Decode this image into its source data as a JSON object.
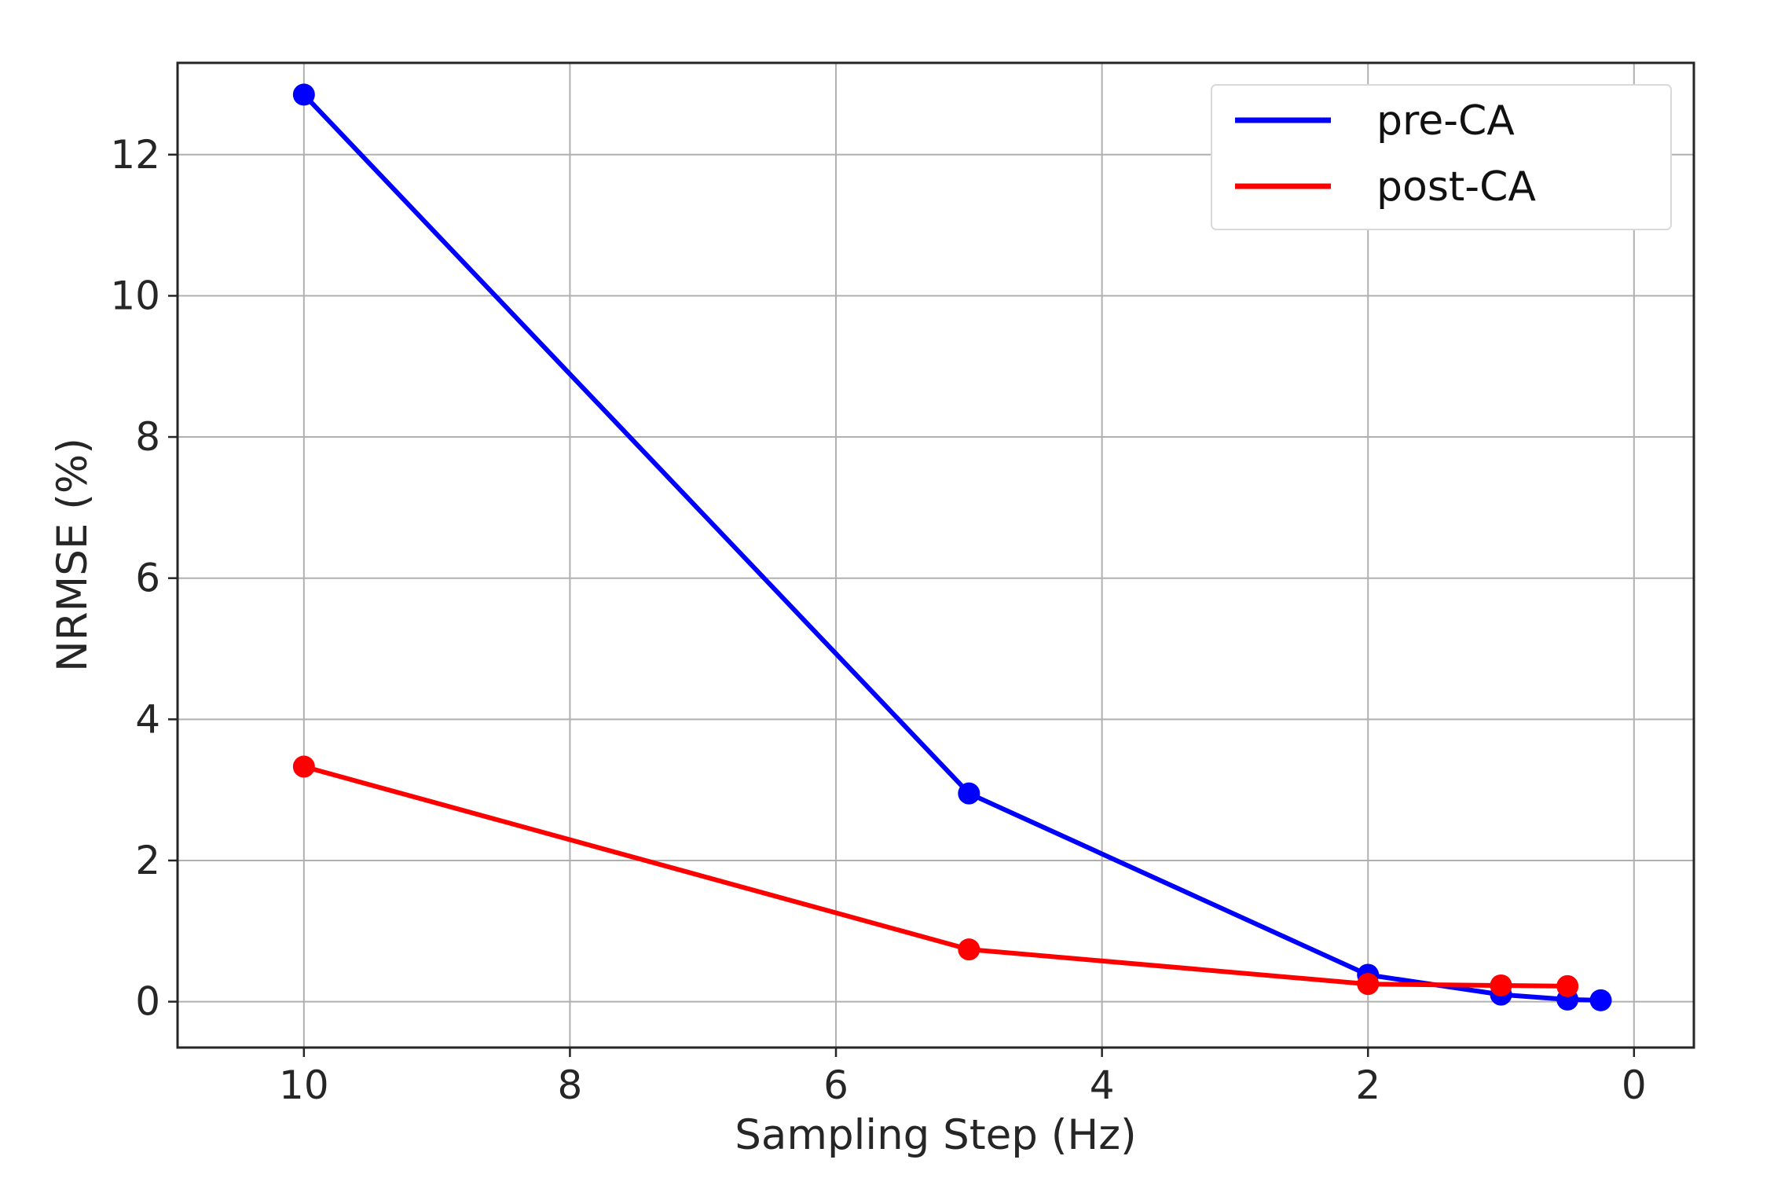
{
  "chart_data": {
    "type": "line",
    "title": "",
    "xlabel": "Sampling Step (Hz)",
    "ylabel": "NRMSE (%)",
    "xlim": [
      10.95,
      -0.45
    ],
    "ylim": [
      -0.65,
      13.3
    ],
    "x_reversed": true,
    "grid": true,
    "legend_position": "top-right",
    "x_ticks": [
      10,
      8,
      6,
      4,
      2,
      0
    ],
    "y_ticks": [
      0,
      2,
      4,
      6,
      8,
      10,
      12
    ],
    "series": [
      {
        "name": "pre-CA",
        "color": "#0000ff",
        "x": [
          10,
          5,
          2,
          1,
          0.5,
          0.25
        ],
        "y": [
          12.85,
          2.95,
          0.38,
          0.1,
          0.03,
          0.02
        ]
      },
      {
        "name": "post-CA",
        "color": "#ff0000",
        "x": [
          10,
          5,
          2,
          1,
          0.5
        ],
        "y": [
          3.33,
          0.74,
          0.25,
          0.23,
          0.22
        ]
      }
    ]
  }
}
